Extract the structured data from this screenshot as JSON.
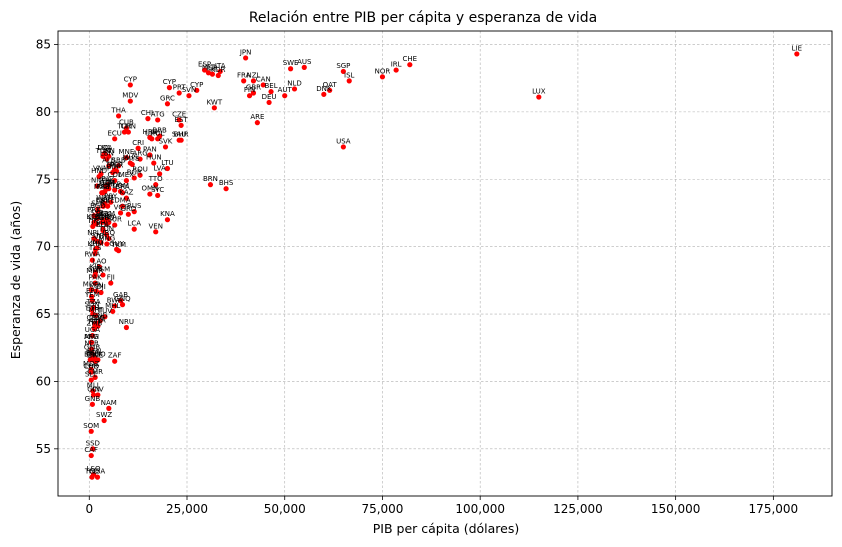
{
  "chart_data": {
    "type": "scatter",
    "title": "Relación entre PIB per cápita y esperanza de vida",
    "xlabel": "PIB per cápita (dólares)",
    "ylabel": "Esperanza de vida (años)",
    "xlim": [
      -8000,
      190000
    ],
    "ylim": [
      51.5,
      86
    ],
    "xticks": [
      0,
      25000,
      50000,
      75000,
      100000,
      125000,
      150000,
      175000
    ],
    "xtick_labels": [
      "0",
      "25,000",
      "50,000",
      "75,000",
      "100,000",
      "125,000",
      "150,000",
      "175,000"
    ],
    "yticks": [
      55,
      60,
      65,
      70,
      75,
      80,
      85
    ],
    "ytick_labels": [
      "55",
      "60",
      "65",
      "70",
      "75",
      "80",
      "85"
    ],
    "grid": true,
    "marker_color": "#ff0000",
    "points": [
      {
        "label": "LIE",
        "x": 181000,
        "y": 84.3
      },
      {
        "label": "LUX",
        "x": 115000,
        "y": 81.1
      },
      {
        "label": "CHE",
        "x": 82000,
        "y": 83.5
      },
      {
        "label": "IRL",
        "x": 78500,
        "y": 83.1
      },
      {
        "label": "NOR",
        "x": 75000,
        "y": 82.6
      },
      {
        "label": "SGP",
        "x": 65000,
        "y": 83.0
      },
      {
        "label": "ISL",
        "x": 66500,
        "y": 82.3
      },
      {
        "label": "USA",
        "x": 65000,
        "y": 77.4
      },
      {
        "label": "QAT",
        "x": 61500,
        "y": 81.6
      },
      {
        "label": "DNK",
        "x": 60000,
        "y": 81.3
      },
      {
        "label": "AUS",
        "x": 55000,
        "y": 83.3
      },
      {
        "label": "SWE",
        "x": 51500,
        "y": 83.2
      },
      {
        "label": "NLD",
        "x": 52500,
        "y": 81.7
      },
      {
        "label": "AUT",
        "x": 50000,
        "y": 81.2
      },
      {
        "label": "BEL",
        "x": 46500,
        "y": 81.5
      },
      {
        "label": "DEU",
        "x": 46000,
        "y": 80.7
      },
      {
        "label": "CAN",
        "x": 44500,
        "y": 82.0
      },
      {
        "label": "FIN",
        "x": 41000,
        "y": 81.2
      },
      {
        "label": "GBR",
        "x": 42000,
        "y": 81.4
      },
      {
        "label": "NZL",
        "x": 42000,
        "y": 82.3
      },
      {
        "label": "FRA",
        "x": 39500,
        "y": 82.3
      },
      {
        "label": "JPN",
        "x": 40000,
        "y": 84.0
      },
      {
        "label": "ITA",
        "x": 33500,
        "y": 83.0
      },
      {
        "label": "ISR",
        "x": 31500,
        "y": 82.8
      },
      {
        "label": "MLT",
        "x": 30500,
        "y": 82.9
      },
      {
        "label": "KOR",
        "x": 33000,
        "y": 82.7
      },
      {
        "label": "ESP",
        "x": 29500,
        "y": 83.1
      },
      {
        "label": "CYP",
        "x": 27500,
        "y": 81.6
      },
      {
        "label": "SVN",
        "x": 25500,
        "y": 81.2
      },
      {
        "label": "ARE",
        "x": 43000,
        "y": 79.2
      },
      {
        "label": "KWT",
        "x": 32000,
        "y": 80.3
      },
      {
        "label": "BRN",
        "x": 31000,
        "y": 74.6
      },
      {
        "label": "BHS",
        "x": 35000,
        "y": 74.3
      },
      {
        "label": "CYP",
        "x": 20500,
        "y": 81.8
      },
      {
        "label": "GRC",
        "x": 20000,
        "y": 80.6
      },
      {
        "label": "PRT",
        "x": 23000,
        "y": 81.4
      },
      {
        "label": "CZE",
        "x": 23000,
        "y": 79.4
      },
      {
        "label": "EST",
        "x": 23500,
        "y": 79.0
      },
      {
        "label": "SVK",
        "x": 19500,
        "y": 77.4
      },
      {
        "label": "LTU",
        "x": 20000,
        "y": 75.8
      },
      {
        "label": "LVA",
        "x": 18000,
        "y": 75.4
      },
      {
        "label": "POL",
        "x": 17500,
        "y": 78.0
      },
      {
        "label": "HRV",
        "x": 15500,
        "y": 78.1
      },
      {
        "label": "HUN",
        "x": 16500,
        "y": 76.2
      },
      {
        "label": "URY",
        "x": 16000,
        "y": 78.0
      },
      {
        "label": "CHL",
        "x": 15000,
        "y": 79.5
      },
      {
        "label": "ATG",
        "x": 17500,
        "y": 79.4
      },
      {
        "label": "BRB",
        "x": 18000,
        "y": 78.2
      },
      {
        "label": "SAU",
        "x": 23000,
        "y": 77.9
      },
      {
        "label": "BHR",
        "x": 23500,
        "y": 77.9
      },
      {
        "label": "PAN",
        "x": 15500,
        "y": 76.8
      },
      {
        "label": "OMN",
        "x": 15500,
        "y": 73.9
      },
      {
        "label": "SYC",
        "x": 17500,
        "y": 73.8
      },
      {
        "label": "TTO",
        "x": 17000,
        "y": 74.6
      },
      {
        "label": "KNA",
        "x": 20000,
        "y": 72.0
      },
      {
        "label": "VEN",
        "x": 17000,
        "y": 71.1
      },
      {
        "label": "RUS",
        "x": 11500,
        "y": 72.6
      },
      {
        "label": "LCA",
        "x": 11500,
        "y": 71.3
      },
      {
        "label": "NRU",
        "x": 9500,
        "y": 64.0
      },
      {
        "label": "GAB",
        "x": 8000,
        "y": 66.0
      },
      {
        "label": "GNQ",
        "x": 8500,
        "y": 65.7
      },
      {
        "label": "ZAF",
        "x": 6500,
        "y": 61.5
      },
      {
        "label": "NAM",
        "x": 5000,
        "y": 58.0
      },
      {
        "label": "THA",
        "x": 7500,
        "y": 79.7
      },
      {
        "label": "MDV",
        "x": 10500,
        "y": 80.8
      },
      {
        "label": "CYP",
        "x": 10500,
        "y": 82.0
      },
      {
        "label": "CHN",
        "x": 10000,
        "y": 78.5
      },
      {
        "label": "TUR",
        "x": 9000,
        "y": 78.5
      },
      {
        "label": "MUS",
        "x": 10500,
        "y": 76.2
      },
      {
        "label": "MYS",
        "x": 11000,
        "y": 76.1
      },
      {
        "label": "ECU",
        "x": 6500,
        "y": 78.0
      },
      {
        "label": "CRI",
        "x": 12500,
        "y": 77.3
      },
      {
        "label": "ARG",
        "x": 13000,
        "y": 76.5
      },
      {
        "label": "DZA",
        "x": 4000,
        "y": 76.9
      },
      {
        "label": "LBN",
        "x": 4500,
        "y": 76.5
      },
      {
        "label": "SRB",
        "x": 7500,
        "y": 76.0
      },
      {
        "label": "MNE",
        "x": 9500,
        "y": 76.6
      },
      {
        "label": "MKD",
        "x": 6500,
        "y": 75.7
      },
      {
        "label": "BIH",
        "x": 6000,
        "y": 75.5
      },
      {
        "label": "ALB",
        "x": 5000,
        "y": 76.0
      },
      {
        "label": "COL",
        "x": 6500,
        "y": 74.9
      },
      {
        "label": "PER",
        "x": 7000,
        "y": 75.6
      },
      {
        "label": "MEX",
        "x": 9500,
        "y": 74.9
      },
      {
        "label": "BRA",
        "x": 8500,
        "y": 74.0
      },
      {
        "label": "BGR",
        "x": 11500,
        "y": 75.1
      },
      {
        "label": "ROU",
        "x": 13000,
        "y": 75.3
      },
      {
        "label": "KAZ",
        "x": 9500,
        "y": 73.6
      },
      {
        "label": "BLR",
        "x": 6500,
        "y": 74.2
      },
      {
        "label": "UKR",
        "x": 3500,
        "y": 73.0
      },
      {
        "label": "PRY",
        "x": 5500,
        "y": 73.3
      },
      {
        "label": "DOM",
        "x": 8000,
        "y": 74.1
      },
      {
        "label": "JAM",
        "x": 5000,
        "y": 74.3
      },
      {
        "label": "SLV",
        "x": 4000,
        "y": 74.1
      },
      {
        "label": "NIC",
        "x": 2000,
        "y": 74.5
      },
      {
        "label": "HND",
        "x": 2500,
        "y": 75.2
      },
      {
        "label": "GTM",
        "x": 4500,
        "y": 74.3
      },
      {
        "label": "VNM",
        "x": 3000,
        "y": 75.4
      },
      {
        "label": "LKA",
        "x": 3800,
        "y": 76.9
      },
      {
        "label": "PSE",
        "x": 3500,
        "y": 74.0
      },
      {
        "label": "EGY",
        "x": 3500,
        "y": 72.0
      },
      {
        "label": "IDN",
        "x": 4000,
        "y": 71.9
      },
      {
        "label": "PHL",
        "x": 3500,
        "y": 71.3
      },
      {
        "label": "KGZ",
        "x": 1200,
        "y": 71.8
      },
      {
        "label": "TJK",
        "x": 900,
        "y": 71.5
      },
      {
        "label": "UZB",
        "x": 1800,
        "y": 71.7
      },
      {
        "label": "MNG",
        "x": 4500,
        "y": 70.2
      },
      {
        "label": "BOL",
        "x": 3500,
        "y": 71.2
      },
      {
        "label": "GUY",
        "x": 7000,
        "y": 69.8
      },
      {
        "label": "TKM",
        "x": 7500,
        "y": 69.7
      },
      {
        "label": "NPL",
        "x": 1200,
        "y": 70.6
      },
      {
        "label": "KHM",
        "x": 1600,
        "y": 69.8
      },
      {
        "label": "IND",
        "x": 2000,
        "y": 69.9
      },
      {
        "label": "BGD",
        "x": 2200,
        "y": 72.6
      },
      {
        "label": "LAO",
        "x": 2600,
        "y": 68.5
      },
      {
        "label": "MMR",
        "x": 1400,
        "y": 67.8
      },
      {
        "label": "TLS",
        "x": 1500,
        "y": 69.5
      },
      {
        "label": "STP",
        "x": 2000,
        "y": 70.4
      },
      {
        "label": "KEN",
        "x": 1800,
        "y": 66.7
      },
      {
        "label": "SEN",
        "x": 1500,
        "y": 67.9
      },
      {
        "label": "RWA",
        "x": 800,
        "y": 69.0
      },
      {
        "label": "MDG",
        "x": 500,
        "y": 66.8
      },
      {
        "label": "ERI",
        "x": 600,
        "y": 66.3
      },
      {
        "label": "ETH",
        "x": 900,
        "y": 65.0
      },
      {
        "label": "GHA",
        "x": 2200,
        "y": 64.1
      },
      {
        "label": "PNG",
        "x": 2800,
        "y": 64.5
      },
      {
        "label": "PAK",
        "x": 1500,
        "y": 67.3
      },
      {
        "label": "HTI",
        "x": 1300,
        "y": 64.0
      },
      {
        "label": "SDN",
        "x": 700,
        "y": 65.3
      },
      {
        "label": "TZA",
        "x": 1100,
        "y": 65.5
      },
      {
        "label": "UGA",
        "x": 800,
        "y": 63.4
      },
      {
        "label": "ZMB",
        "x": 1300,
        "y": 63.9
      },
      {
        "label": "ZWE",
        "x": 1500,
        "y": 61.5
      },
      {
        "label": "AGO",
        "x": 2200,
        "y": 61.6
      },
      {
        "label": "CMR",
        "x": 1500,
        "y": 60.3
      },
      {
        "label": "BEN",
        "x": 1300,
        "y": 61.8
      },
      {
        "label": "GMB",
        "x": 700,
        "y": 62.1
      },
      {
        "label": "TGO",
        "x": 900,
        "y": 61.6
      },
      {
        "label": "BFA",
        "x": 800,
        "y": 61.7
      },
      {
        "label": "NER",
        "x": 600,
        "y": 62.4
      },
      {
        "label": "MLI",
        "x": 900,
        "y": 59.3
      },
      {
        "label": "GIN",
        "x": 1100,
        "y": 59.0
      },
      {
        "label": "MOZ",
        "x": 500,
        "y": 60.9
      },
      {
        "label": "MWI",
        "x": 600,
        "y": 62.9
      },
      {
        "label": "AFG",
        "x": 500,
        "y": 62.9
      },
      {
        "label": "BDI",
        "x": 250,
        "y": 61.6
      },
      {
        "label": "COG",
        "x": 2000,
        "y": 64.3
      },
      {
        "label": "COD",
        "x": 500,
        "y": 60.7
      },
      {
        "label": "LBR",
        "x": 600,
        "y": 60.7
      },
      {
        "label": "SLE",
        "x": 500,
        "y": 60.1
      },
      {
        "label": "GNB",
        "x": 800,
        "y": 58.3
      },
      {
        "label": "CIV",
        "x": 2200,
        "y": 59.0
      },
      {
        "label": "TCD",
        "x": 700,
        "y": 52.9
      },
      {
        "label": "LSO",
        "x": 1100,
        "y": 53.1
      },
      {
        "label": "CAF",
        "x": 500,
        "y": 54.5
      },
      {
        "label": "NGA",
        "x": 2100,
        "y": 52.9
      },
      {
        "label": "SSD",
        "x": 900,
        "y": 55.0
      },
      {
        "label": "SOM",
        "x": 500,
        "y": 56.3
      },
      {
        "label": "SWZ",
        "x": 3800,
        "y": 57.1
      },
      {
        "label": "BWA",
        "x": 6500,
        "y": 65.6
      },
      {
        "label": "FJI",
        "x": 5500,
        "y": 67.3
      },
      {
        "label": "GEO",
        "x": 4500,
        "y": 71.7
      },
      {
        "label": "ARM",
        "x": 4600,
        "y": 72.0
      },
      {
        "label": "AZE",
        "x": 4700,
        "y": 73.0
      },
      {
        "label": "IRN",
        "x": 5000,
        "y": 76.7
      },
      {
        "label": "JOR",
        "x": 4300,
        "y": 74.5
      },
      {
        "label": "TUN",
        "x": 3500,
        "y": 76.7
      },
      {
        "label": "MAR",
        "x": 3200,
        "y": 74.0
      },
      {
        "label": "IRQ",
        "x": 5000,
        "y": 70.6
      },
      {
        "label": "SYR",
        "x": 2000,
        "y": 72.1
      },
      {
        "label": "YEM",
        "x": 800,
        "y": 66.0
      },
      {
        "label": "DJI",
        "x": 3000,
        "y": 66.6
      },
      {
        "label": "MRT",
        "x": 1700,
        "y": 64.9
      },
      {
        "label": "COM",
        "x": 1400,
        "y": 64.3
      },
      {
        "label": "SLB",
        "x": 2200,
        "y": 72.8
      },
      {
        "label": "VUT",
        "x": 3000,
        "y": 70.3
      },
      {
        "label": "WSM",
        "x": 4000,
        "y": 73.2
      },
      {
        "label": "TON",
        "x": 4400,
        "y": 70.9
      },
      {
        "label": "KIR",
        "x": 1600,
        "y": 68.1
      },
      {
        "label": "FSM",
        "x": 3500,
        "y": 67.9
      },
      {
        "label": "MHL",
        "x": 6000,
        "y": 65.2
      },
      {
        "label": "TUV",
        "x": 4000,
        "y": 64.8
      },
      {
        "label": "BTN",
        "x": 3300,
        "y": 71.8
      },
      {
        "label": "CPV",
        "x": 3600,
        "y": 73.0
      },
      {
        "label": "BLZ",
        "x": 4800,
        "y": 74.6
      },
      {
        "label": "SUR",
        "x": 6500,
        "y": 71.6
      },
      {
        "label": "GRD",
        "x": 10000,
        "y": 72.4
      },
      {
        "label": "VCT",
        "x": 8000,
        "y": 72.5
      },
      {
        "label": "DMA",
        "x": 8500,
        "y": 73.0
      },
      {
        "label": "CUB",
        "x": 9500,
        "y": 78.8
      },
      {
        "label": "MDA",
        "x": 5000,
        "y": 71.8
      },
      {
        "label": "PRK",
        "x": 1200,
        "y": 72.3
      }
    ]
  }
}
